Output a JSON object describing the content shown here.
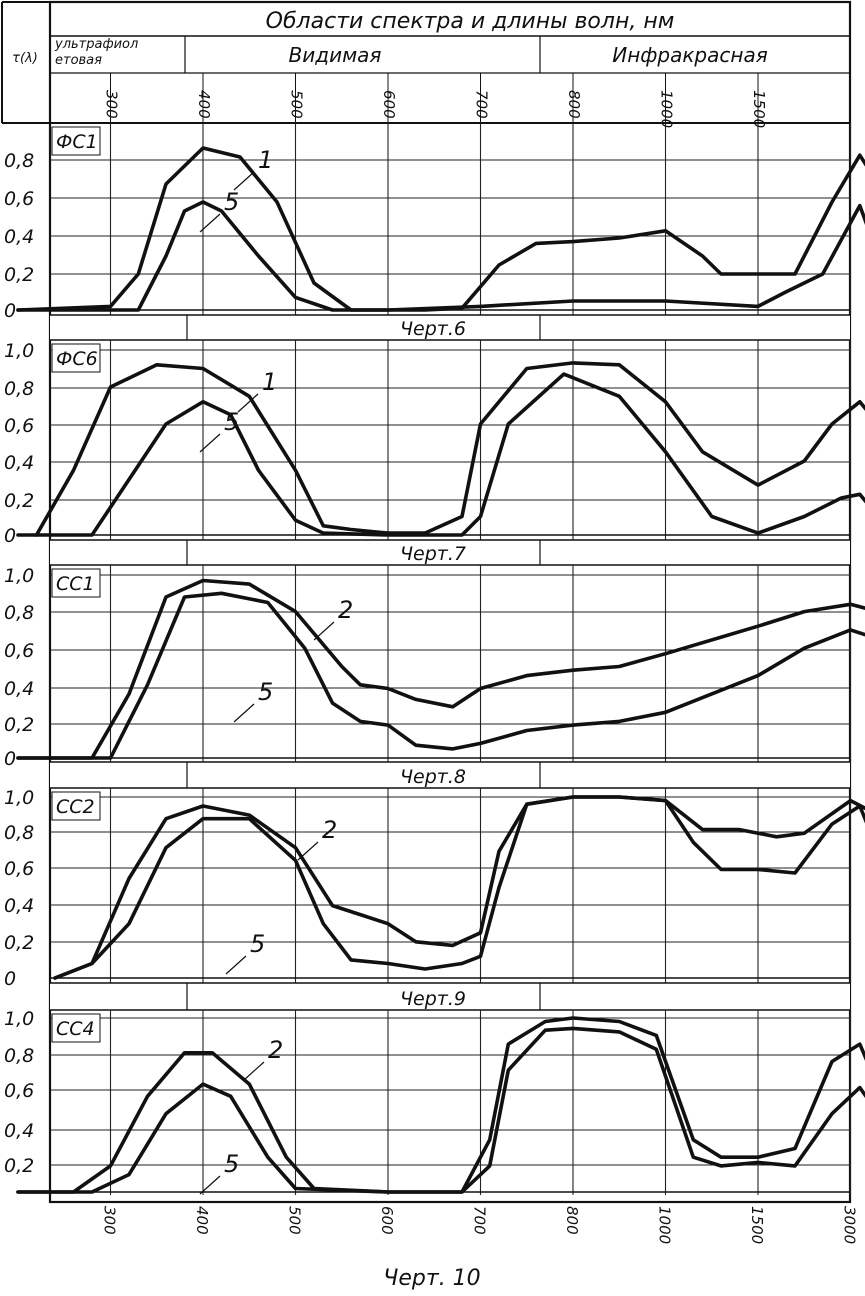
{
  "header": {
    "ylabel": "τ(λ)",
    "title": "Области спектра и длины волн, нм",
    "regions": [
      "ультрафиолетовая",
      "Видимая",
      "Инфракрасная"
    ],
    "ticks": [
      "300",
      "400",
      "500",
      "600",
      "700",
      "800",
      "1000",
      "1500"
    ]
  },
  "chart_data": [
    {
      "type": "line",
      "filter": "ФС1",
      "caption": "Черт.6",
      "y_ticks": [
        "0,8",
        "0,6",
        "0,4",
        "0,2",
        "0"
      ],
      "ylim": [
        0,
        1.0
      ],
      "x_ticks": [
        "300",
        "400",
        "500",
        "600",
        "700",
        "800",
        "1000",
        "1500",
        "3000"
      ],
      "series": [
        {
          "name": "1",
          "points": [
            [
              0,
              0
            ],
            [
              1,
              0.02
            ],
            [
              1.3,
              0.2
            ],
            [
              1.6,
              0.7
            ],
            [
              2,
              0.9
            ],
            [
              2.4,
              0.85
            ],
            [
              2.8,
              0.6
            ],
            [
              3.2,
              0.15
            ],
            [
              3.6,
              0
            ],
            [
              4,
              0
            ],
            [
              4.4,
              0
            ],
            [
              4.8,
              0.01
            ],
            [
              5.2,
              0.25
            ],
            [
              5.6,
              0.37
            ],
            [
              6,
              0.38
            ],
            [
              6.5,
              0.4
            ],
            [
              7,
              0.44
            ],
            [
              7.4,
              0.3
            ],
            [
              7.6,
              0.2
            ],
            [
              8,
              0.2
            ],
            [
              8.4,
              0.2
            ],
            [
              8.8,
              0.6
            ],
            [
              9.1,
              0.86
            ],
            [
              9.3,
              0.7
            ],
            [
              9.5,
              0.58
            ]
          ]
        },
        {
          "name": "5",
          "points": [
            [
              0,
              0
            ],
            [
              1.3,
              0
            ],
            [
              1.6,
              0.3
            ],
            [
              1.8,
              0.55
            ],
            [
              2,
              0.6
            ],
            [
              2.2,
              0.55
            ],
            [
              2.6,
              0.3
            ],
            [
              3,
              0.07
            ],
            [
              3.4,
              0
            ],
            [
              4,
              0
            ],
            [
              5,
              0.02
            ],
            [
              6,
              0.05
            ],
            [
              7,
              0.05
            ],
            [
              8,
              0.02
            ],
            [
              8.3,
              0.1
            ],
            [
              8.7,
              0.2
            ],
            [
              9.1,
              0.58
            ],
            [
              9.3,
              0.3
            ],
            [
              9.5,
              0.1
            ]
          ]
        }
      ]
    },
    {
      "type": "line",
      "filter": "ФС6",
      "caption": "Черт.7",
      "y_ticks": [
        "1,0",
        "0,8",
        "0,6",
        "0,4",
        "0,2",
        "0"
      ],
      "ylim": [
        0,
        1.0
      ],
      "x_ticks": [
        "300",
        "400",
        "500",
        "600",
        "700",
        "800",
        "1000",
        "1500",
        "3000"
      ],
      "series": [
        {
          "name": "1",
          "points": [
            [
              0.2,
              0
            ],
            [
              0.6,
              0.35
            ],
            [
              1,
              0.8
            ],
            [
              1.5,
              0.92
            ],
            [
              2,
              0.9
            ],
            [
              2.5,
              0.75
            ],
            [
              3,
              0.35
            ],
            [
              3.3,
              0.05
            ],
            [
              3.6,
              0.03
            ],
            [
              4,
              0.01
            ],
            [
              4.4,
              0.01
            ],
            [
              4.8,
              0.1
            ],
            [
              5,
              0.6
            ],
            [
              5.5,
              0.9
            ],
            [
              6,
              0.93
            ],
            [
              6.5,
              0.92
            ],
            [
              7,
              0.72
            ],
            [
              7.4,
              0.45
            ],
            [
              8,
              0.27
            ],
            [
              8.5,
              0.4
            ],
            [
              8.8,
              0.6
            ],
            [
              9.1,
              0.72
            ],
            [
              9.3,
              0.6
            ],
            [
              9.5,
              0.45
            ]
          ]
        },
        {
          "name": "5",
          "points": [
            [
              0,
              0
            ],
            [
              0.8,
              0
            ],
            [
              1.2,
              0.3
            ],
            [
              1.6,
              0.6
            ],
            [
              2,
              0.72
            ],
            [
              2.3,
              0.65
            ],
            [
              2.6,
              0.35
            ],
            [
              3,
              0.08
            ],
            [
              3.3,
              0.01
            ],
            [
              4,
              0
            ],
            [
              4.4,
              0
            ],
            [
              4.8,
              0
            ],
            [
              5,
              0.1
            ],
            [
              5.3,
              0.6
            ],
            [
              5.9,
              0.87
            ],
            [
              6.5,
              0.75
            ],
            [
              7,
              0.45
            ],
            [
              7.5,
              0.1
            ],
            [
              8,
              0.01
            ],
            [
              8.5,
              0.1
            ],
            [
              8.9,
              0.2
            ],
            [
              9.1,
              0.22
            ],
            [
              9.3,
              0.1
            ],
            [
              9.5,
              0.05
            ]
          ]
        }
      ]
    },
    {
      "type": "line",
      "filter": "СС1",
      "caption": "Черт.8",
      "y_ticks": [
        "1,0",
        "0,8",
        "0,6",
        "0,4",
        "0,2",
        "0"
      ],
      "ylim": [
        0,
        1.0
      ],
      "x_ticks": [
        "300",
        "400",
        "500",
        "600",
        "700",
        "800",
        "1000",
        "1500",
        "3000"
      ],
      "series": [
        {
          "name": "2",
          "points": [
            [
              0,
              0
            ],
            [
              0.8,
              0
            ],
            [
              1.2,
              0.35
            ],
            [
              1.6,
              0.88
            ],
            [
              2,
              0.97
            ],
            [
              2.5,
              0.95
            ],
            [
              3,
              0.8
            ],
            [
              3.5,
              0.5
            ],
            [
              3.7,
              0.4
            ],
            [
              4,
              0.38
            ],
            [
              4.3,
              0.32
            ],
            [
              4.7,
              0.28
            ],
            [
              5,
              0.38
            ],
            [
              5.5,
              0.45
            ],
            [
              6,
              0.48
            ],
            [
              6.5,
              0.5
            ],
            [
              7,
              0.57
            ],
            [
              8,
              0.72
            ],
            [
              8.5,
              0.8
            ],
            [
              9,
              0.84
            ],
            [
              9.3,
              0.8
            ],
            [
              9.5,
              0.5
            ]
          ]
        },
        {
          "name": "5",
          "points": [
            [
              0,
              0
            ],
            [
              1,
              0
            ],
            [
              1.4,
              0.4
            ],
            [
              1.8,
              0.88
            ],
            [
              2.2,
              0.9
            ],
            [
              2.7,
              0.85
            ],
            [
              3.1,
              0.6
            ],
            [
              3.4,
              0.3
            ],
            [
              3.7,
              0.2
            ],
            [
              4,
              0.18
            ],
            [
              4.3,
              0.07
            ],
            [
              4.7,
              0.05
            ],
            [
              5,
              0.08
            ],
            [
              5.5,
              0.15
            ],
            [
              6,
              0.18
            ],
            [
              6.5,
              0.2
            ],
            [
              7,
              0.25
            ],
            [
              8,
              0.45
            ],
            [
              8.5,
              0.6
            ],
            [
              9,
              0.7
            ],
            [
              9.3,
              0.65
            ],
            [
              9.5,
              0.3
            ]
          ]
        }
      ]
    },
    {
      "type": "line",
      "filter": "СС2",
      "caption": "Черт.9",
      "y_ticks": [
        "1,0",
        "0,8",
        "0,6",
        "0,4",
        "0,2",
        "0"
      ],
      "ylim": [
        0,
        1.0
      ],
      "x_ticks": [
        "300",
        "400",
        "500",
        "600",
        "700",
        "800",
        "1000",
        "1500",
        "3000"
      ],
      "series": [
        {
          "name": "2",
          "points": [
            [
              0.4,
              0
            ],
            [
              0.8,
              0.08
            ],
            [
              1.2,
              0.55
            ],
            [
              1.6,
              0.88
            ],
            [
              2,
              0.95
            ],
            [
              2.5,
              0.9
            ],
            [
              3,
              0.72
            ],
            [
              3.4,
              0.4
            ],
            [
              3.7,
              0.35
            ],
            [
              4,
              0.3
            ],
            [
              4.3,
              0.2
            ],
            [
              4.7,
              0.18
            ],
            [
              5,
              0.25
            ],
            [
              5.2,
              0.7
            ],
            [
              5.5,
              0.96
            ],
            [
              6,
              1.0
            ],
            [
              6.5,
              1.0
            ],
            [
              7,
              0.98
            ],
            [
              7.4,
              0.82
            ],
            [
              7.8,
              0.82
            ],
            [
              8.2,
              0.78
            ],
            [
              8.5,
              0.8
            ],
            [
              9,
              0.98
            ],
            [
              9.3,
              0.9
            ],
            [
              9.5,
              0.55
            ]
          ]
        },
        {
          "name": "5",
          "points": [
            [
              0.4,
              0
            ],
            [
              0.8,
              0.08
            ],
            [
              1.2,
              0.3
            ],
            [
              1.6,
              0.72
            ],
            [
              2,
              0.88
            ],
            [
              2.5,
              0.88
            ],
            [
              3,
              0.65
            ],
            [
              3.3,
              0.3
            ],
            [
              3.6,
              0.1
            ],
            [
              4,
              0.08
            ],
            [
              4.4,
              0.05
            ],
            [
              4.8,
              0.08
            ],
            [
              5,
              0.12
            ],
            [
              5.2,
              0.5
            ],
            [
              5.5,
              0.96
            ],
            [
              6,
              1.0
            ],
            [
              6.5,
              1.0
            ],
            [
              7,
              0.98
            ],
            [
              7.3,
              0.75
            ],
            [
              7.6,
              0.6
            ],
            [
              8,
              0.6
            ],
            [
              8.4,
              0.58
            ],
            [
              8.8,
              0.85
            ],
            [
              9.1,
              0.95
            ],
            [
              9.3,
              0.7
            ],
            [
              9.5,
              0.2
            ]
          ]
        }
      ]
    },
    {
      "type": "line",
      "filter": "СС4",
      "caption": "Черт. 10",
      "y_ticks": [
        "1,0",
        "0,8",
        "0,6",
        "0,4",
        "0,2"
      ],
      "ylim": [
        0,
        1.0
      ],
      "x_ticks": [
        "300",
        "400",
        "500",
        "600",
        "700",
        "800",
        "1000",
        "1500",
        "3000"
      ],
      "series": [
        {
          "name": "2",
          "points": [
            [
              0,
              0
            ],
            [
              0.6,
              0
            ],
            [
              1,
              0.15
            ],
            [
              1.4,
              0.55
            ],
            [
              1.8,
              0.8
            ],
            [
              2.1,
              0.8
            ],
            [
              2.5,
              0.62
            ],
            [
              2.9,
              0.2
            ],
            [
              3.2,
              0.02
            ],
            [
              4,
              0
            ],
            [
              4.8,
              0
            ],
            [
              5.1,
              0.3
            ],
            [
              5.3,
              0.85
            ],
            [
              5.7,
              0.98
            ],
            [
              6,
              1.0
            ],
            [
              6.5,
              0.98
            ],
            [
              6.9,
              0.9
            ],
            [
              7.3,
              0.3
            ],
            [
              7.6,
              0.2
            ],
            [
              8,
              0.2
            ],
            [
              8.4,
              0.25
            ],
            [
              8.8,
              0.75
            ],
            [
              9.1,
              0.85
            ],
            [
              9.3,
              0.6
            ],
            [
              9.5,
              0.15
            ]
          ]
        },
        {
          "name": "5",
          "points": [
            [
              0,
              0
            ],
            [
              0.8,
              0
            ],
            [
              1.2,
              0.1
            ],
            [
              1.6,
              0.45
            ],
            [
              2,
              0.62
            ],
            [
              2.3,
              0.55
            ],
            [
              2.7,
              0.2
            ],
            [
              3,
              0.02
            ],
            [
              4,
              0
            ],
            [
              4.8,
              0
            ],
            [
              5.1,
              0.15
            ],
            [
              5.3,
              0.7
            ],
            [
              5.7,
              0.93
            ],
            [
              6,
              0.94
            ],
            [
              6.5,
              0.92
            ],
            [
              6.9,
              0.82
            ],
            [
              7.3,
              0.2
            ],
            [
              7.6,
              0.15
            ],
            [
              8,
              0.17
            ],
            [
              8.4,
              0.15
            ],
            [
              8.8,
              0.45
            ],
            [
              9.1,
              0.6
            ],
            [
              9.3,
              0.45
            ],
            [
              9.5,
              0.05
            ]
          ]
        }
      ]
    }
  ]
}
